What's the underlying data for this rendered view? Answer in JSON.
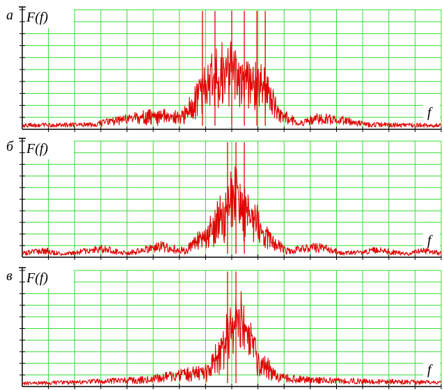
{
  "chart_data": [
    {
      "type": "line",
      "panel_label": "а",
      "ylabel": "F(f)",
      "xlabel": "f",
      "grid": true,
      "line_color": "#e00000",
      "grid_color": "#33dd33",
      "xlim": [
        0,
        1
      ],
      "ylim": [
        0,
        1
      ],
      "envelope": [
        [
          0.0,
          0.05
        ],
        [
          0.17,
          0.06
        ],
        [
          0.22,
          0.11
        ],
        [
          0.3,
          0.18
        ],
        [
          0.38,
          0.16
        ],
        [
          0.4,
          0.3
        ],
        [
          0.43,
          0.52
        ],
        [
          0.46,
          0.7
        ],
        [
          0.5,
          0.78
        ],
        [
          0.53,
          0.74
        ],
        [
          0.56,
          0.62
        ],
        [
          0.59,
          0.45
        ],
        [
          0.61,
          0.22
        ],
        [
          0.66,
          0.07
        ],
        [
          0.7,
          0.14
        ],
        [
          0.76,
          0.12
        ],
        [
          0.82,
          0.06
        ],
        [
          1.0,
          0.05
        ]
      ],
      "peaks": [
        0.43,
        0.46,
        0.5,
        0.53,
        0.56,
        0.58
      ]
    },
    {
      "type": "line",
      "panel_label": "б",
      "ylabel": "F(f)",
      "xlabel": "f",
      "grid": true,
      "line_color": "#e00000",
      "grid_color": "#33dd33",
      "xlim": [
        0,
        1
      ],
      "ylim": [
        0,
        1
      ],
      "envelope": [
        [
          0.0,
          0.05
        ],
        [
          0.05,
          0.09
        ],
        [
          0.1,
          0.04
        ],
        [
          0.19,
          0.11
        ],
        [
          0.25,
          0.05
        ],
        [
          0.33,
          0.14
        ],
        [
          0.39,
          0.08
        ],
        [
          0.45,
          0.38
        ],
        [
          0.48,
          0.6
        ],
        [
          0.51,
          0.88
        ],
        [
          0.54,
          0.62
        ],
        [
          0.57,
          0.4
        ],
        [
          0.6,
          0.2
        ],
        [
          0.63,
          0.08
        ],
        [
          0.71,
          0.13
        ],
        [
          0.77,
          0.05
        ],
        [
          0.85,
          0.09
        ],
        [
          0.92,
          0.04
        ],
        [
          0.96,
          0.09
        ],
        [
          1.0,
          0.05
        ]
      ],
      "peaks": [
        0.49,
        0.51,
        0.53
      ]
    },
    {
      "type": "line",
      "panel_label": "в",
      "ylabel": "F(f)",
      "xlabel": "f",
      "grid": true,
      "line_color": "#e00000",
      "grid_color": "#33dd33",
      "xlim": [
        0,
        1
      ],
      "ylim": [
        0,
        1
      ],
      "envelope": [
        [
          0.0,
          0.04
        ],
        [
          0.15,
          0.06
        ],
        [
          0.3,
          0.09
        ],
        [
          0.38,
          0.16
        ],
        [
          0.44,
          0.2
        ],
        [
          0.47,
          0.45
        ],
        [
          0.5,
          0.78
        ],
        [
          0.52,
          0.86
        ],
        [
          0.55,
          0.55
        ],
        [
          0.58,
          0.3
        ],
        [
          0.61,
          0.12
        ],
        [
          0.67,
          0.09
        ],
        [
          0.8,
          0.07
        ],
        [
          1.0,
          0.05
        ]
      ],
      "peaks": [
        0.49,
        0.51
      ]
    }
  ]
}
